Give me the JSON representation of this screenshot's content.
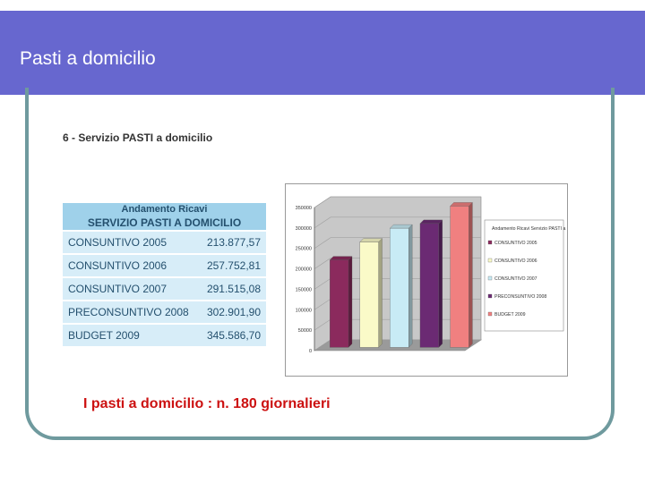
{
  "header": {
    "title": "Pasti a domicilio"
  },
  "subtitle": "6 - Servizio PASTI a domicilio",
  "table": {
    "header_line1": "Andamento Ricavi",
    "header_line2": "SERVIZIO PASTI A DOMICILIO",
    "rows": [
      {
        "label": "CONSUNTIVO 2005",
        "value": "213.877,57"
      },
      {
        "label": "CONSUNTIVO 2006",
        "value": "257.752,81"
      },
      {
        "label": "CONSUNTIVO 2007",
        "value": "291.515,08"
      },
      {
        "label": "PRECONSUNTIVO 2008",
        "value": "302.901,90"
      },
      {
        "label": "BUDGET 2009",
        "value": "345.586,70"
      }
    ]
  },
  "chart_data": {
    "type": "bar",
    "title": "",
    "ylim": [
      0,
      350000
    ],
    "yticks": [
      "0",
      "50000",
      "100000",
      "150000",
      "200000",
      "250000",
      "300000",
      "350000"
    ],
    "categories": [
      "CONSUNTIVO 2005",
      "CONSUNTIVO 2006",
      "CONSUNTIVO 2007",
      "PRECONSUNTIVO 2008",
      "BUDGET 2009"
    ],
    "values": [
      213877.57,
      257752.81,
      291515.08,
      302901.9,
      345586.7
    ],
    "colors": [
      "#8b2a5d",
      "#fafac8",
      "#c8ebf5",
      "#6b2a73",
      "#f08080"
    ],
    "legend_title": "Andamento Ricavi Servizio PASTI a domicilio",
    "legend": [
      "CONSUNTIVO 2005",
      "CONSUNTIVO 2006",
      "CONSUNTIVO 2007",
      "PRECONSUNTIVO 2008",
      "BUDGET 2009"
    ],
    "legend_position": "right"
  },
  "footer": {
    "text": "I pasti a domicilio : n. 180 giornalieri"
  }
}
